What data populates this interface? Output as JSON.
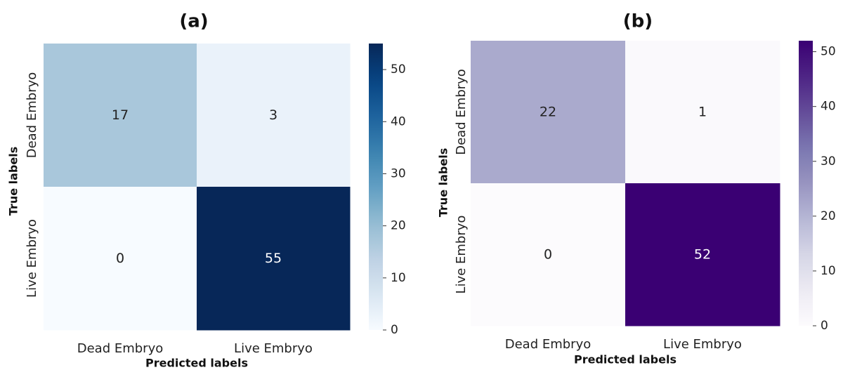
{
  "chart_data": [
    {
      "type": "heatmap",
      "panel_label": "(a)",
      "x_categories": [
        "Dead Embryo",
        "Live Embryo"
      ],
      "y_categories": [
        "Dead Embryo",
        "Live Embryo"
      ],
      "values": [
        [
          17,
          3
        ],
        [
          0,
          55
        ]
      ],
      "xlabel": "Predicted labels",
      "ylabel": "True labels",
      "colorbar": {
        "range": [
          0,
          55
        ],
        "ticks": [
          0,
          10,
          20,
          30,
          40,
          50
        ]
      },
      "colormap": "Blues",
      "colors": {
        "low": "#f7fbff",
        "high": "#08306b"
      }
    },
    {
      "type": "heatmap",
      "panel_label": "(b)",
      "x_categories": [
        "Dead Embryo",
        "Live Embryo"
      ],
      "y_categories": [
        "Dead Embryo",
        "Live Embryo"
      ],
      "values": [
        [
          22,
          1
        ],
        [
          0,
          52
        ]
      ],
      "xlabel": "Predicted labels",
      "ylabel": "True labels",
      "colorbar": {
        "range": [
          0,
          52
        ],
        "ticks": [
          0,
          10,
          20,
          30,
          40,
          50
        ]
      },
      "colormap": "Purples",
      "colors": {
        "low": "#fcfbfd",
        "high": "#3f007d"
      }
    }
  ]
}
